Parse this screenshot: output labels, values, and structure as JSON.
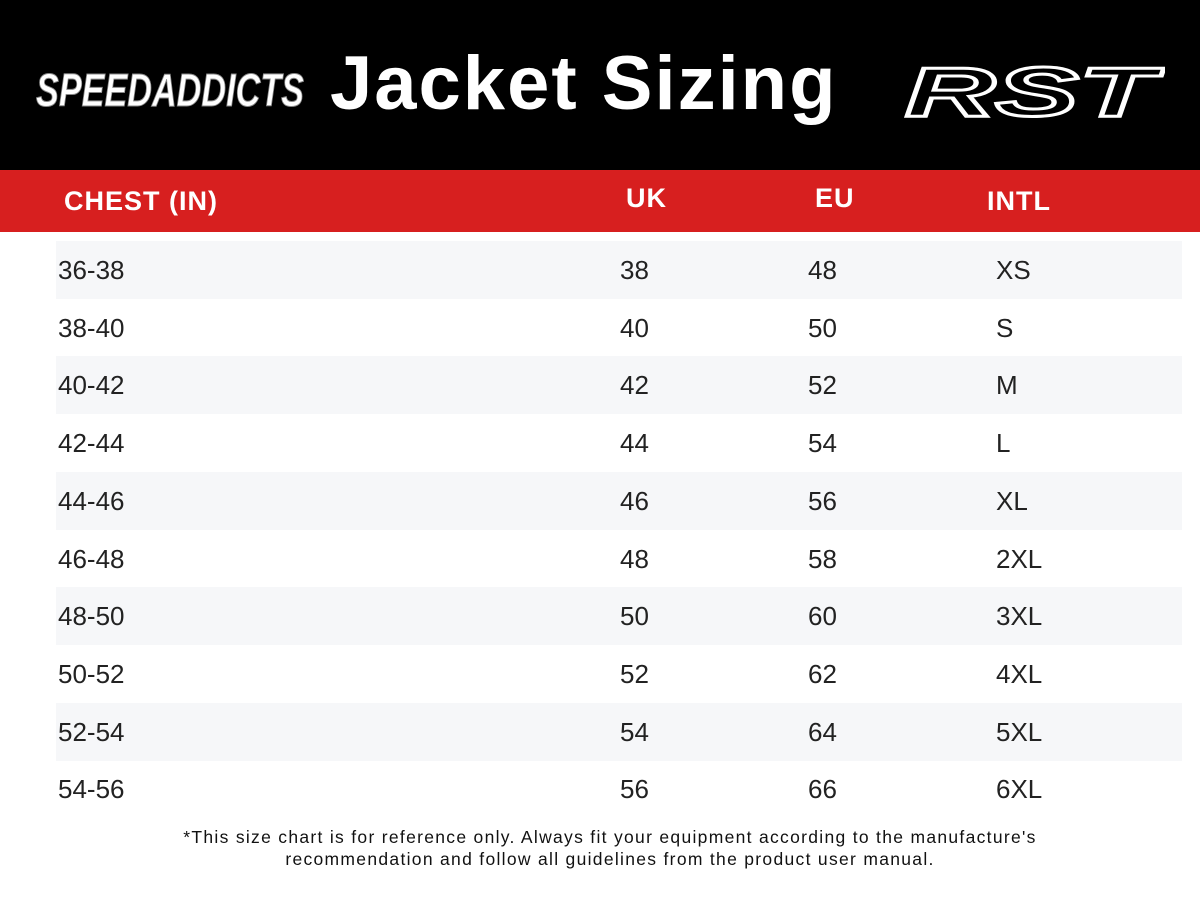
{
  "header": {
    "left_logo": "SPEEDADDICTS",
    "title": "Jacket Sizing",
    "right_logo": "RST"
  },
  "table": {
    "columns": [
      "CHEST (IN)",
      "UK",
      "EU",
      "INTL"
    ],
    "rows": [
      [
        "36-38",
        "38",
        "48",
        "XS"
      ],
      [
        "38-40",
        "40",
        "50",
        "S"
      ],
      [
        "40-42",
        "42",
        "52",
        "M"
      ],
      [
        "42-44",
        "44",
        "54",
        "L"
      ],
      [
        "44-46",
        "46",
        "56",
        "XL"
      ],
      [
        "46-48",
        "48",
        "58",
        "2XL"
      ],
      [
        "48-50",
        "50",
        "60",
        "3XL"
      ],
      [
        "50-52",
        "52",
        "62",
        "4XL"
      ],
      [
        "52-54",
        "54",
        "64",
        "5XL"
      ],
      [
        "54-56",
        "56",
        "66",
        "6XL"
      ]
    ]
  },
  "footnote": [
    "*This size chart is for reference only. Always fit your equipment according to the manufacture's",
    "recommendation and follow all guidelines from the product user manual."
  ]
}
